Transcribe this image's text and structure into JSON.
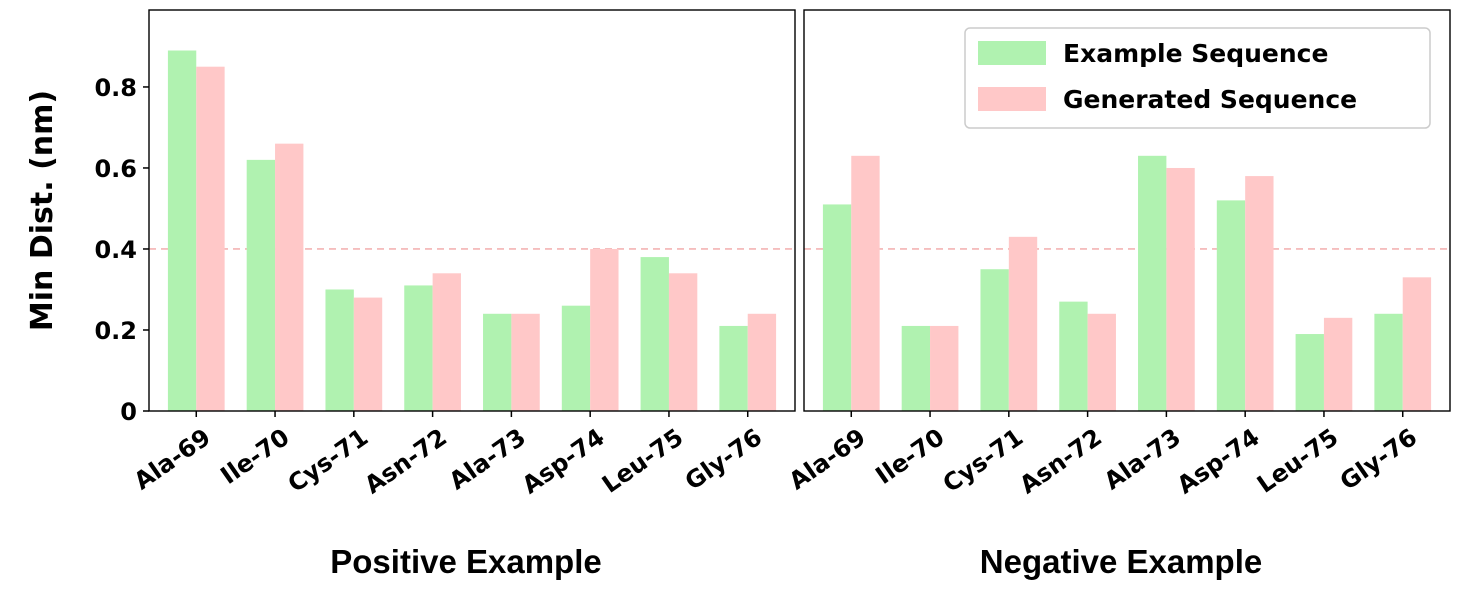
{
  "chart_data": [
    {
      "type": "bar",
      "xlabel": "Positive Example",
      "ylabel": "Min Dist. (nm)",
      "categories": [
        "Ala-69",
        "Ile-70",
        "Cys-71",
        "Asn-72",
        "Ala-73",
        "Asp-74",
        "Leu-75",
        "Gly-76"
      ],
      "series": [
        {
          "name": "Example Sequence",
          "color": "#b0f2b0",
          "values": [
            0.89,
            0.62,
            0.3,
            0.31,
            0.24,
            0.26,
            0.38,
            0.21
          ]
        },
        {
          "name": "Generated Sequence",
          "color": "#ffc8c8",
          "values": [
            0.85,
            0.66,
            0.28,
            0.34,
            0.24,
            0.4,
            0.34,
            0.24
          ]
        }
      ],
      "yticks": [
        "0",
        "0.2",
        "0.4",
        "0.6",
        "0.8"
      ],
      "ylim": [
        0,
        0.99
      ],
      "reference_line": {
        "y": 0.4,
        "style": "dashed",
        "color": "#f4b4b4"
      },
      "legend": false,
      "grid": false
    },
    {
      "type": "bar",
      "xlabel": "Negative Example",
      "ylabel": "",
      "categories": [
        "Ala-69",
        "Ile-70",
        "Cys-71",
        "Asn-72",
        "Ala-73",
        "Asp-74",
        "Leu-75",
        "Gly-76"
      ],
      "series": [
        {
          "name": "Example Sequence",
          "color": "#b0f2b0",
          "values": [
            0.51,
            0.21,
            0.35,
            0.27,
            0.63,
            0.52,
            0.19,
            0.24
          ]
        },
        {
          "name": "Generated Sequence",
          "color": "#ffc8c8",
          "values": [
            0.63,
            0.21,
            0.43,
            0.24,
            0.6,
            0.58,
            0.23,
            0.33
          ]
        }
      ],
      "yticks": [],
      "ylim": [
        0,
        0.99
      ],
      "reference_line": {
        "y": 0.4,
        "style": "dashed",
        "color": "#f4b4b4"
      },
      "legend": true,
      "legend_position": "top-right",
      "grid": false
    }
  ]
}
